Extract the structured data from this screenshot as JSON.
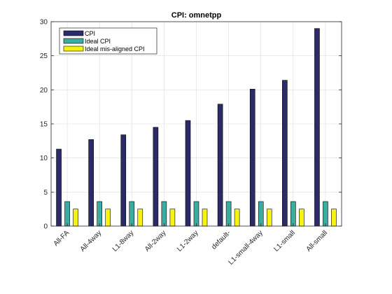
{
  "chart_data": {
    "type": "bar",
    "title": "CPI: omnetpp",
    "xlabel": "",
    "ylabel": "",
    "categories": [
      "All-FA",
      "All-4way",
      "L1-8way",
      "All-2way",
      "L1-2way",
      "default-",
      "L1-small-4way",
      "L1-small",
      "All-small"
    ],
    "ylim": [
      0,
      30
    ],
    "yticks": [
      0,
      5,
      10,
      15,
      20,
      25,
      30
    ],
    "grid": true,
    "legend_position": "top-left",
    "series": [
      {
        "name": "CPI",
        "color": "#2b2a6b",
        "values": [
          11.3,
          12.7,
          13.4,
          14.5,
          15.5,
          17.9,
          20.1,
          21.4,
          29.0
        ]
      },
      {
        "name": "Ideal CPI",
        "color": "#3aada0",
        "values": [
          3.6,
          3.6,
          3.6,
          3.6,
          3.6,
          3.6,
          3.6,
          3.6,
          3.6
        ]
      },
      {
        "name": "Ideal mis-aligned CPI",
        "color": "#f8f20f",
        "values": [
          2.5,
          2.5,
          2.5,
          2.5,
          2.5,
          2.5,
          2.5,
          2.5,
          2.5
        ]
      }
    ]
  }
}
